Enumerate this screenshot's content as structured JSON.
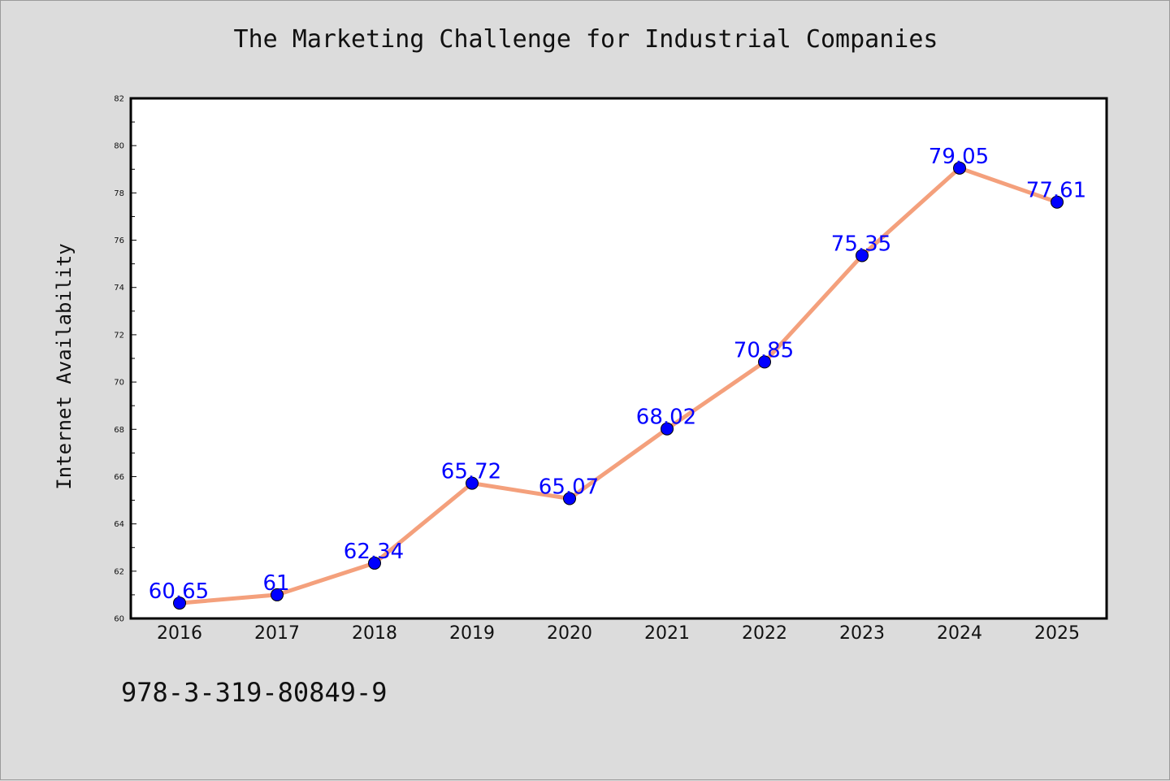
{
  "footer_text": "978-3-319-80849-9",
  "colors": {
    "background": "#dcdcdc",
    "plot_background": "#ffffff",
    "line": "#f4a07c",
    "marker": "#0000ff",
    "data_label": "#0000ff"
  },
  "chart_data": {
    "type": "line",
    "title": "The Marketing Challenge for Industrial Companies",
    "xlabel": "",
    "ylabel": "Internet Availability",
    "categories": [
      "2016",
      "2017",
      "2018",
      "2019",
      "2020",
      "2021",
      "2022",
      "2023",
      "2024",
      "2025"
    ],
    "series": [
      {
        "values": [
          60.65,
          61,
          62.34,
          65.72,
          65.07,
          68.02,
          70.85,
          75.35,
          79.05,
          77.61
        ],
        "labels": [
          "60.65",
          "61",
          "62.34",
          "65.72",
          "65.07",
          "68.02",
          "70.85",
          "75.35",
          "79.05",
          "77.61"
        ]
      }
    ],
    "ylim": [
      60,
      82
    ],
    "yticks": [
      60,
      62,
      64,
      66,
      68,
      70,
      72,
      74,
      76,
      78,
      80,
      82
    ],
    "grid": false,
    "legend": "none"
  }
}
